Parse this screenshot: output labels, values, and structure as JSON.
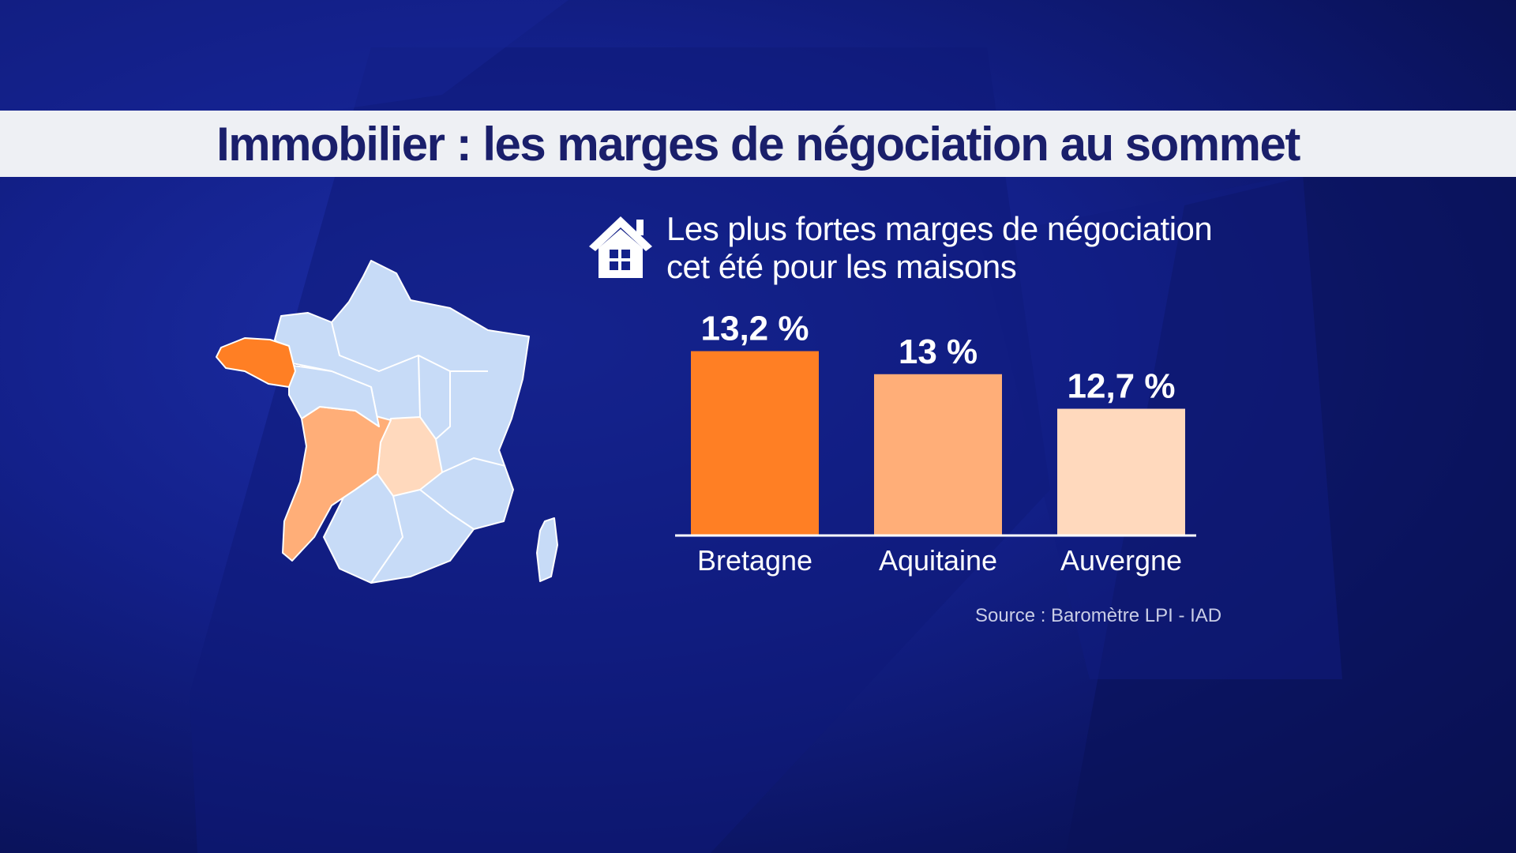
{
  "title": "Immobilier : les marges de négociation au sommet",
  "subtitle": {
    "line1": "Les plus fortes marges de négociation",
    "line2": "cet été pour les maisons"
  },
  "icons": {
    "house": "house-icon"
  },
  "source": "Source : Baromètre LPI - IAD",
  "colors": {
    "background": "#13208a",
    "title_bar": "#eef0f4",
    "title_text": "#1a1f6b",
    "map_base": "#c7dbf7",
    "bretagne": "#ff7f24",
    "aquitaine": "#ffae78",
    "auvergne": "#ffd9bd"
  },
  "map": {
    "regions_highlighted": [
      "Bretagne",
      "Aquitaine",
      "Auvergne"
    ]
  },
  "chart_data": {
    "type": "bar",
    "categories": [
      "Bretagne",
      "Aquitaine",
      "Auvergne"
    ],
    "values": [
      13.2,
      13.0,
      12.7
    ],
    "value_labels": [
      "13,2 %",
      "13 %",
      "12,7 %"
    ],
    "bar_colors": [
      "#ff7f24",
      "#ffae78",
      "#ffd9bd"
    ],
    "ylim": [
      11.6,
      13.3
    ],
    "grid": false,
    "legend": "none"
  }
}
